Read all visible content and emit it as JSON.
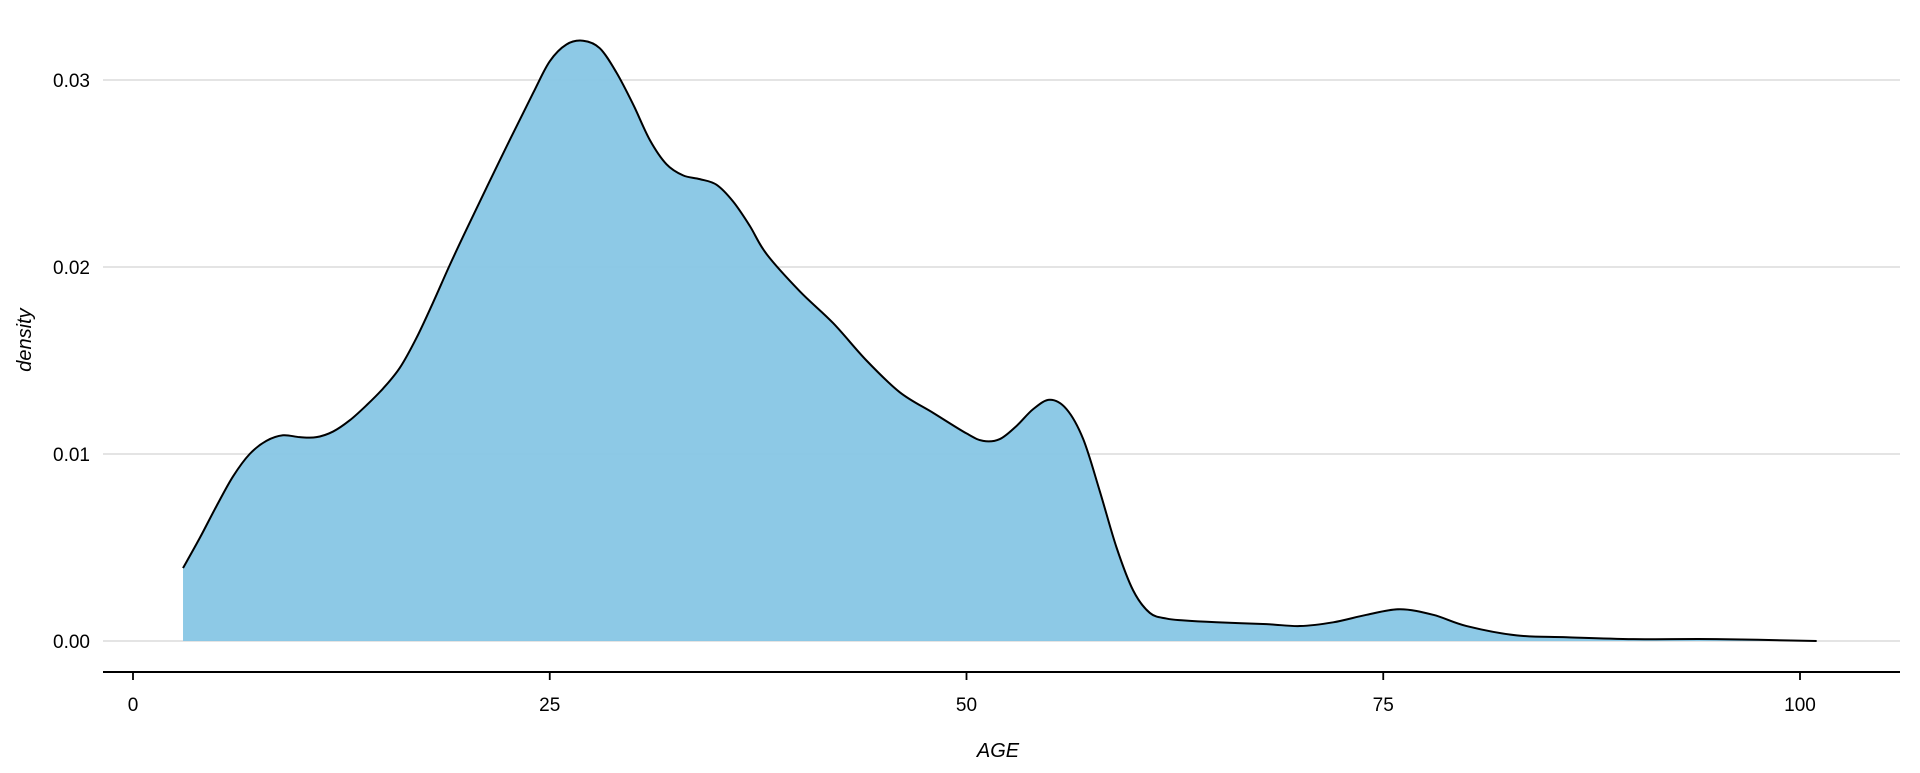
{
  "chart_data": {
    "type": "area",
    "title": "",
    "xlabel": "AGE",
    "ylabel": "density",
    "xlim": [
      0,
      100
    ],
    "ylim": [
      0,
      0.03
    ],
    "x_ticks": [
      0,
      25,
      50,
      75,
      100
    ],
    "x_tick_labels": [
      "0",
      "25",
      "50",
      "75",
      "100"
    ],
    "y_ticks": [
      0,
      0.01,
      0.02,
      0.03
    ],
    "y_tick_labels": [
      "0.00",
      "0.01",
      "0.02",
      "0.03"
    ],
    "grid": "horizontal",
    "legend": "none",
    "fill_color": "#87C6E5",
    "line_color": "#000000",
    "series": [
      {
        "x": [
          3,
          4,
          5,
          6,
          7,
          8,
          9,
          10,
          11,
          12,
          13,
          14,
          15,
          16,
          17,
          18,
          19,
          20,
          22,
          24,
          25,
          26,
          27,
          28,
          29,
          30,
          31,
          32,
          33,
          34,
          35,
          36,
          37,
          38,
          40,
          42,
          44,
          46,
          48,
          50,
          51,
          52,
          53,
          54,
          55,
          56,
          57,
          58,
          59,
          60,
          61,
          62,
          63,
          65,
          68,
          70,
          72,
          74,
          76,
          78,
          80,
          83,
          86,
          90,
          95,
          101
        ],
        "y": [
          0.0039,
          0.0055,
          0.0072,
          0.0088,
          0.01,
          0.0107,
          0.011,
          0.0109,
          0.0109,
          0.0112,
          0.0118,
          0.0126,
          0.0135,
          0.0146,
          0.0162,
          0.0181,
          0.0201,
          0.022,
          0.0257,
          0.0293,
          0.031,
          0.0319,
          0.0321,
          0.0317,
          0.0304,
          0.0287,
          0.0268,
          0.0255,
          0.0249,
          0.0247,
          0.0244,
          0.0235,
          0.0222,
          0.0207,
          0.0187,
          0.017,
          0.015,
          0.0133,
          0.0122,
          0.0111,
          0.0107,
          0.0108,
          0.0115,
          0.0124,
          0.0129,
          0.0124,
          0.0108,
          0.008,
          0.005,
          0.0027,
          0.0015,
          0.0012,
          0.0011,
          0.001,
          0.0009,
          0.0008,
          0.001,
          0.0014,
          0.0017,
          0.0014,
          0.0008,
          0.0003,
          0.0002,
          0.0001,
          0.0001,
          0.0
        ]
      }
    ]
  }
}
